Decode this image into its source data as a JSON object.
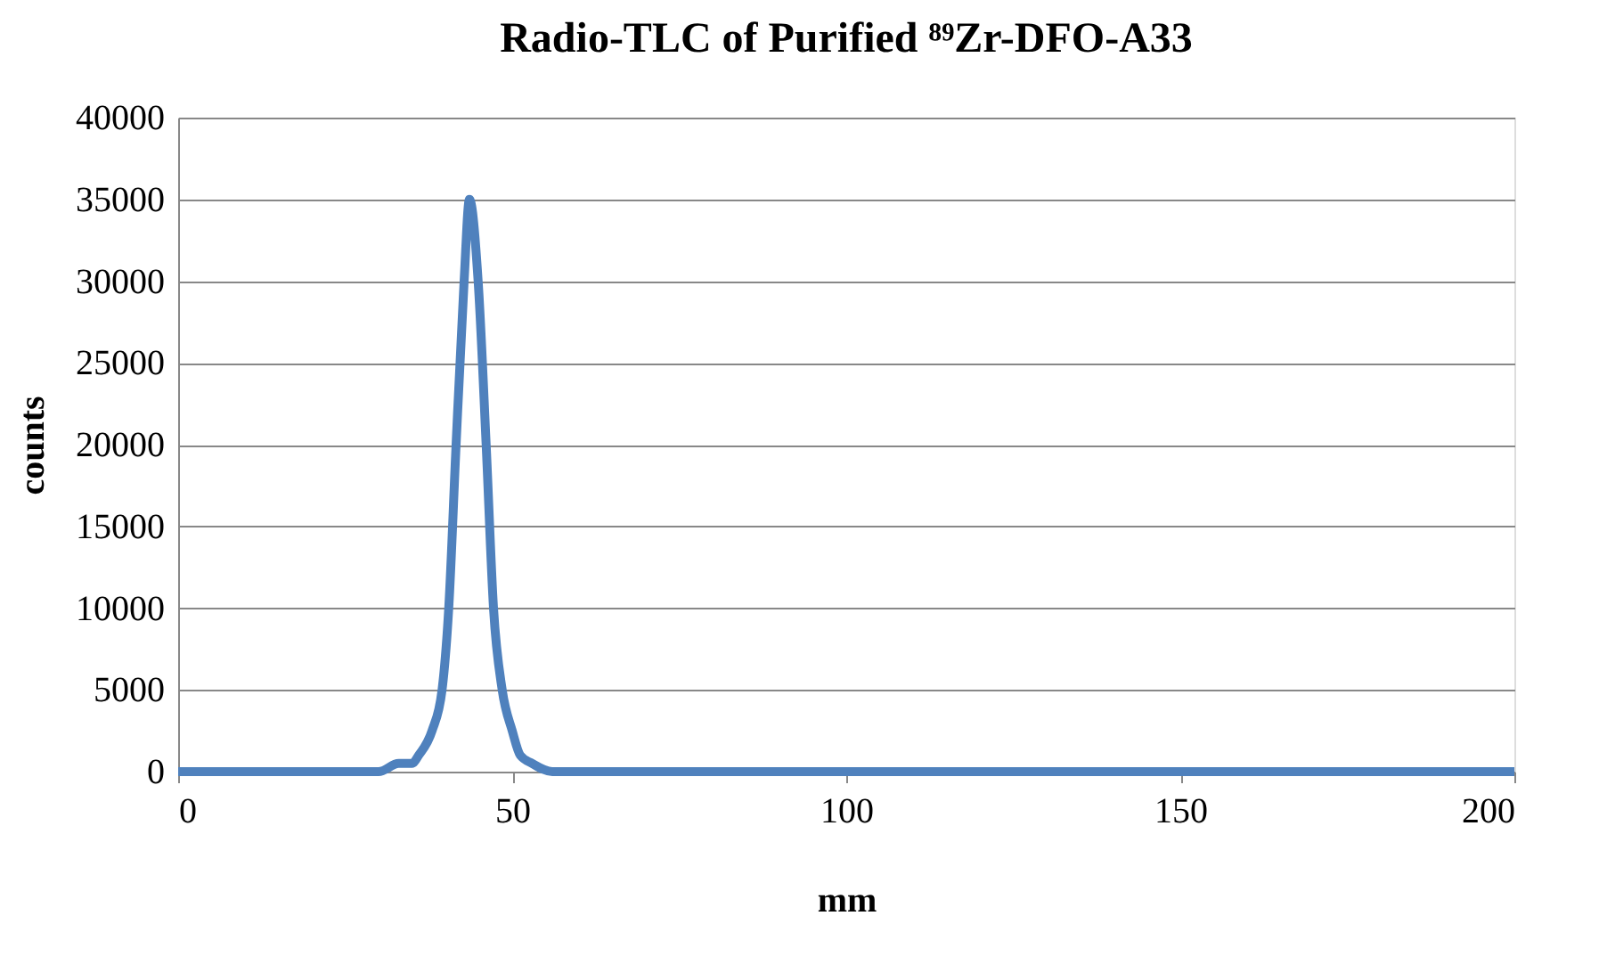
{
  "chart_data": {
    "type": "line",
    "title": "Radio-TLC of Purified ⁸⁹Zr-DFO-A33",
    "xlabel": "mm",
    "ylabel": "counts",
    "x": [
      0,
      10,
      20,
      25,
      30,
      33,
      35,
      36,
      38,
      39.5,
      40.5,
      41.6,
      42.8,
      43.6,
      44.9,
      46.1,
      47.2,
      48.5,
      50,
      51.2,
      53,
      56,
      60,
      70,
      100,
      150,
      200
    ],
    "series": [
      {
        "color": "#4f81bd",
        "values": [
          0,
          0,
          0,
          0,
          0,
          500,
          500,
          1000,
          2500,
          5000,
          10000,
          20000,
          30000,
          35000,
          30000,
          20000,
          10000,
          5000,
          2500,
          1000,
          500,
          0,
          0,
          0,
          0,
          0,
          0
        ]
      }
    ],
    "xlim": [
      0,
      200
    ],
    "xticks": [
      0,
      50,
      100,
      150,
      200
    ],
    "ylim": [
      0,
      40000
    ],
    "yticks": [
      0,
      5000,
      10000,
      15000,
      20000,
      25000,
      30000,
      35000,
      40000
    ],
    "grid": "y",
    "marker": "none",
    "line_style": "solid"
  }
}
